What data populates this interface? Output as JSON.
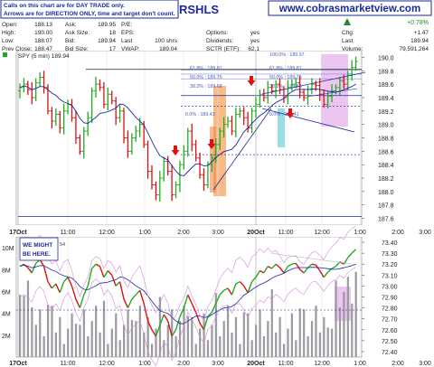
{
  "header": {
    "note_line1": "Calls on this chart are for DAY TRADE only.",
    "note_line2": "Arrows are for DIRECTION ONLY, time and target don't count.",
    "title": "RSHLS",
    "website": "www.cobrasmarketview.com",
    "quote": {
      "open_label": "Open:",
      "open": "188.13",
      "high_label": "High:",
      "high": "190.00",
      "low_label": "Low:",
      "low": "188.07",
      "prev_label": "Prev Close:",
      "prev": "188.47",
      "ask_label": "Ask:",
      "ask": "189.95",
      "asksize_label": "Ask Size:",
      "asksize": "18",
      "bid_label": "Bid:",
      "bid": "189.94",
      "bidsize_label": "Bid Size:",
      "bidsize": "17",
      "pe_label": "P/E:",
      "eps_label": "EPS:",
      "last_label": "Last",
      "last_val": "100 shrs",
      "vwap_label": "VWAP:",
      "vwap": "189.04",
      "options_label": "Options:",
      "options": "yes",
      "dividends_label": "Dividends:",
      "dividends": "yes",
      "sctr_label": "SCTR (ETF):",
      "sctr": "62.1",
      "chg_pct": "+0.78%",
      "chg_label": "Chg:",
      "chg": "+1.47",
      "last2_label": "Last",
      "last2": "189.94",
      "volume_label": "Volume:",
      "volume": "79,591,264"
    },
    "series_label": "SPY (5 min) 189.94"
  },
  "annotations": {
    "might_be_here_1": "WE MIGHT",
    "might_be_here_2": "BE HERE.",
    "small_label": "54"
  },
  "colors": {
    "up_bar": "#22aa22",
    "down_bar": "#dd1111",
    "ma": "#1a2a9a",
    "arrow": "#dd1111",
    "orange_zone": "#f4a460",
    "cyan_zone": "#7fd6e0",
    "magenta_zone": "#e0a0e8"
  },
  "chart_data": [
    {
      "type": "bar",
      "title": "SPY (5 min) 189.94",
      "x_ticks": [
        "17Oct",
        "11:00",
        "12:00",
        "1:00",
        "2:00",
        "3:00",
        "20Oct",
        "11:00",
        "12:00",
        "1:00",
        "2:00",
        "3:00"
      ],
      "y_ticks": [
        187.6,
        187.8,
        188.0,
        188.2,
        188.4,
        188.6,
        188.8,
        189.0,
        189.2,
        189.4,
        189.6,
        189.8,
        190.0
      ],
      "ylim": [
        187.5,
        190.1
      ],
      "fib_labels": [
        "100.0% : 189.97",
        "61.8% : 189.81",
        "61.8% : 189.81",
        "50.0% : 189.75",
        "50.0% : 189.75",
        "38.2% : 189.68",
        "38.2% : 189.65",
        "0.0% : 189.43",
        "0.0% : 189.41"
      ],
      "close": [
        189.55,
        189.6,
        189.52,
        189.4,
        189.62,
        189.7,
        189.55,
        189.2,
        189.05,
        189.15,
        188.95,
        189.2,
        189.3,
        189.1,
        188.8,
        188.6,
        188.9,
        189.1,
        189.5,
        189.6,
        189.55,
        189.3,
        189.45,
        189.35,
        189.1,
        189.2,
        188.8,
        188.6,
        188.8,
        188.9,
        189.0,
        188.7,
        188.3,
        188.1,
        187.95,
        188.2,
        188.45,
        188.3,
        187.95,
        188.1,
        188.4,
        188.6,
        188.9,
        188.7,
        188.5,
        188.25,
        188.1,
        188.4,
        188.5,
        188.7,
        188.9,
        189.0,
        189.05,
        188.9,
        189.15,
        189.2,
        189.1,
        188.95,
        189.2,
        189.3,
        189.45,
        189.4,
        189.55,
        189.5,
        189.6,
        189.52,
        189.4,
        189.55,
        189.6,
        189.62,
        189.48,
        189.4,
        189.52,
        189.6,
        189.58,
        189.45,
        189.3,
        189.42,
        189.5,
        189.55,
        189.65,
        189.6,
        189.75,
        189.85,
        189.94
      ]
    },
    {
      "type": "bar",
      "title": "Volume",
      "y_ticks_left": [
        "2M",
        "4M",
        "6M",
        "8M",
        "10M"
      ],
      "y_ticks_right": [
        72.4,
        72.5,
        72.6,
        72.7,
        72.8,
        72.9,
        73.0,
        73.1,
        73.2,
        73.3,
        73.4
      ],
      "ylim_right": [
        72.35,
        73.45
      ]
    }
  ]
}
